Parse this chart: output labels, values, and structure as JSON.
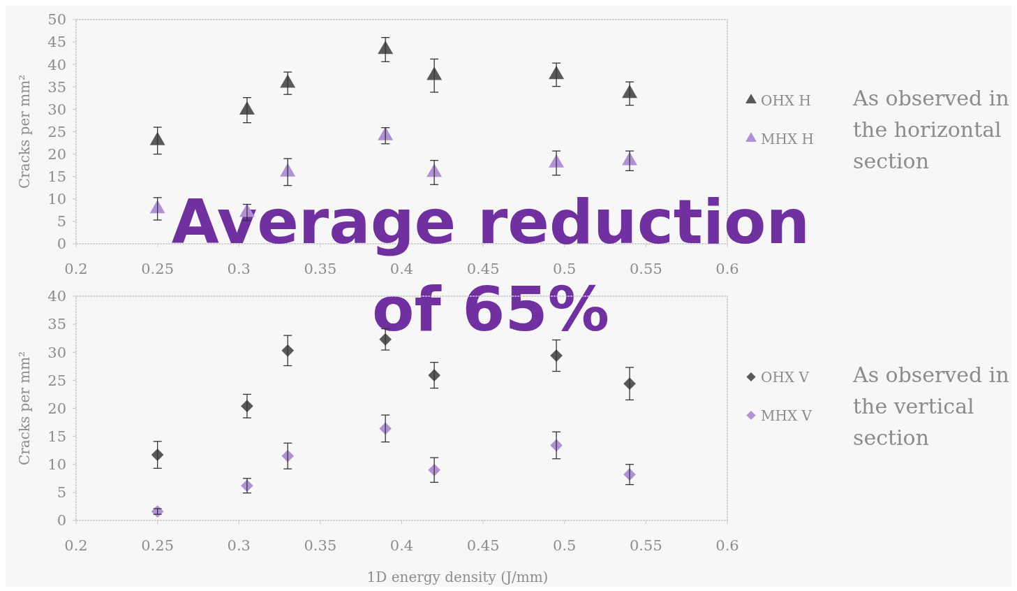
{
  "chart_data": [
    {
      "type": "scatter",
      "ylabel": "Cracks per mm²",
      "x": [
        0.25,
        0.305,
        0.33,
        0.39,
        0.42,
        0.495,
        0.54
      ],
      "xlim": [
        0.2,
        0.6
      ],
      "xticks": [
        0.2,
        0.25,
        0.3,
        0.35,
        0.4,
        0.45,
        0.5,
        0.55,
        0.6
      ],
      "ylim": [
        0,
        50
      ],
      "yticks": [
        0,
        5,
        10,
        15,
        20,
        25,
        30,
        35,
        40,
        45,
        50
      ],
      "marker": "triangle",
      "legend": "right",
      "annotations": [
        "Average reduction of 65%",
        "As observed in the horizontal section"
      ],
      "series": [
        {
          "name": "OHX H",
          "color": "#595959",
          "values": [
            23,
            29.8,
            35.8,
            43.3,
            37.5,
            37.7,
            33.5
          ],
          "errors": [
            3,
            2.8,
            2.5,
            2.7,
            3.7,
            2.6,
            2.6
          ]
        },
        {
          "name": "MHX H",
          "color": "#b191d6",
          "values": [
            7.8,
            7,
            16,
            24.1,
            15.9,
            18,
            18.5
          ],
          "errors": [
            2.5,
            1.8,
            3,
            1.8,
            2.7,
            2.7,
            2.2
          ]
        }
      ]
    },
    {
      "type": "scatter",
      "ylabel": "Cracks per mm²",
      "xlabel": "1D energy density (J/mm)",
      "x": [
        0.25,
        0.305,
        0.33,
        0.39,
        0.42,
        0.495,
        0.54
      ],
      "xlim": [
        0.2,
        0.6
      ],
      "xticks": [
        0.2,
        0.25,
        0.3,
        0.35,
        0.4,
        0.45,
        0.5,
        0.55,
        0.6
      ],
      "ylim": [
        0,
        40
      ],
      "yticks": [
        0,
        5,
        10,
        15,
        20,
        25,
        30,
        35,
        40
      ],
      "marker": "diamond",
      "legend": "right",
      "annotations": [
        "As observed in the vertical section"
      ],
      "series": [
        {
          "name": "OHX V",
          "color": "#595959",
          "values": [
            11.7,
            20.4,
            30.3,
            32.3,
            25.9,
            29.4,
            24.4
          ],
          "errors": [
            2.4,
            2.1,
            2.7,
            1.9,
            2.3,
            2.8,
            2.9
          ]
        },
        {
          "name": "MHX V",
          "color": "#b191d6",
          "values": [
            1.6,
            6.2,
            11.5,
            16.4,
            9,
            13.4,
            8.2
          ],
          "errors": [
            0.5,
            1.3,
            2.3,
            2.4,
            2.2,
            2.4,
            1.8
          ]
        }
      ]
    }
  ]
}
